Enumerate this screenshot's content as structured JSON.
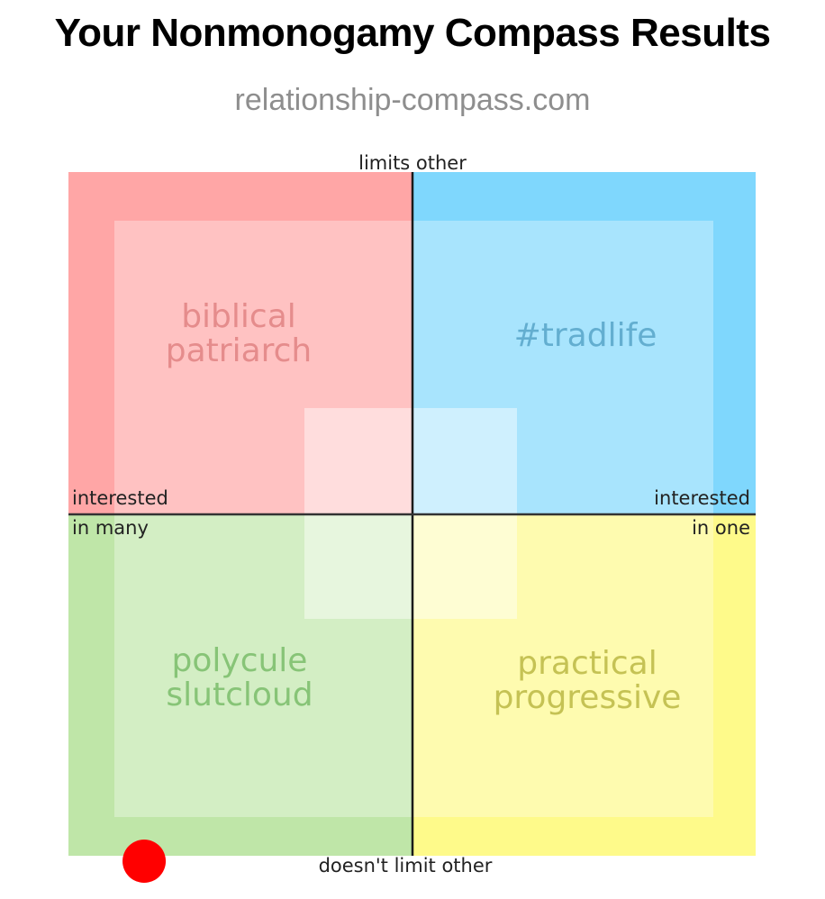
{
  "header": {
    "title": "Your Nonmonogamy Compass Results",
    "source": "relationship-compass.com"
  },
  "chart_data": {
    "type": "scatter",
    "axes": {
      "top": "limits other",
      "bottom": "doesn't limit other",
      "left": [
        "interested",
        "in many"
      ],
      "right": [
        "interested",
        "in one"
      ]
    },
    "xlim": [
      -10,
      10
    ],
    "ylim": [
      -10,
      10
    ],
    "quadrants": [
      {
        "position": "top-left",
        "label": [
          "biblical",
          "patriarch"
        ],
        "color": "#ffa6a6",
        "label_color": "#e58c8c"
      },
      {
        "position": "top-right",
        "label": [
          "#tradlife"
        ],
        "color": "#7fd7fd",
        "label_color": "#63aed0"
      },
      {
        "position": "bottom-left",
        "label": [
          "polycule",
          "slutcloud"
        ],
        "color": "#bfe6a8",
        "label_color": "#87c477"
      },
      {
        "position": "bottom-right",
        "label": [
          "practical",
          "progressive"
        ],
        "color": "#fefa8a",
        "label_color": "#c5c254"
      }
    ],
    "points": [
      {
        "x": -7.8,
        "y": -10,
        "color": "#ff0000"
      }
    ]
  }
}
